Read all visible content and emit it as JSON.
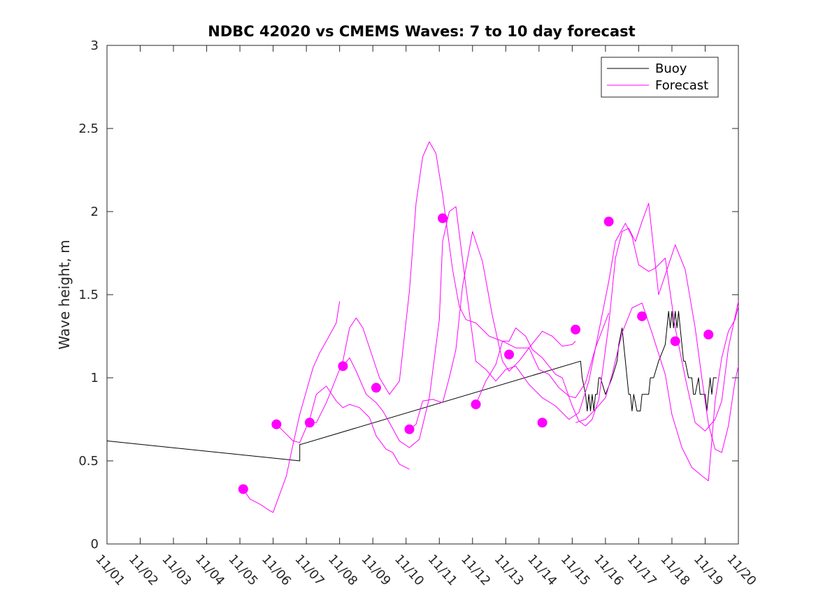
{
  "chart_data": {
    "type": "line",
    "title": "NDBC 42020 vs CMEMS Waves: 7 to 10 day forecast",
    "xlabel": "",
    "ylabel": "Wave height, m",
    "xlim": [
      0,
      19
    ],
    "ylim": [
      0,
      3
    ],
    "yticks": [
      0,
      0.5,
      1,
      1.5,
      2,
      2.5,
      3
    ],
    "ytick_labels": [
      "0",
      "0.5",
      "1",
      "1.5",
      "2",
      "2.5",
      "3"
    ],
    "xtick_labels": [
      "11/01",
      "11/02",
      "11/03",
      "11/04",
      "11/05",
      "11/06",
      "11/07",
      "11/08",
      "11/09",
      "11/10",
      "11/11",
      "11/12",
      "11/13",
      "11/14",
      "11/15",
      "11/16",
      "11/17",
      "11/18",
      "11/19",
      "11/20"
    ],
    "legend": {
      "position": "top-right",
      "entries": [
        {
          "label": "Buoy",
          "color": "#000000"
        },
        {
          "label": "Forecast",
          "color": "#ff00ff"
        }
      ]
    },
    "colors": {
      "buoy": "#000000",
      "forecast": "#ff00ff",
      "axis": "#262626"
    },
    "series": [
      {
        "name": "Buoy",
        "x": [
          0,
          5.8,
          5.8,
          5.85,
          14.25,
          14.3,
          14.4,
          14.45,
          14.5,
          14.55,
          14.6,
          14.65,
          14.7,
          14.75,
          14.8,
          14.85,
          15.0,
          15.2,
          15.35,
          15.4,
          15.5,
          15.55,
          15.6,
          15.65,
          15.7,
          15.75,
          15.8,
          15.85,
          15.95,
          16.05,
          16.1,
          16.2,
          16.3,
          16.35,
          16.45,
          16.6,
          16.8,
          16.85,
          16.9,
          16.95,
          17.0,
          17.05,
          17.1,
          17.15,
          17.2,
          17.25,
          17.3,
          17.35,
          17.4,
          17.5,
          17.55,
          17.6,
          17.65,
          17.7,
          17.8,
          17.85,
          17.9,
          18.0,
          18.05,
          18.1,
          18.15,
          18.2,
          18.25,
          18.3,
          18.35
        ],
        "y": [
          0.62,
          0.5,
          0.6,
          0.6,
          1.1,
          1.0,
          0.9,
          0.8,
          0.9,
          0.8,
          0.9,
          0.8,
          0.9,
          0.9,
          1.0,
          1.0,
          0.9,
          1.0,
          1.1,
          1.2,
          1.3,
          1.2,
          1.1,
          1.0,
          0.9,
          0.9,
          0.8,
          0.9,
          0.8,
          0.8,
          0.9,
          0.9,
          0.9,
          1.0,
          1.0,
          1.1,
          1.2,
          1.3,
          1.4,
          1.3,
          1.4,
          1.3,
          1.4,
          1.3,
          1.4,
          1.3,
          1.2,
          1.1,
          1.1,
          1.0,
          1.0,
          1.0,
          0.9,
          0.9,
          1.0,
          0.9,
          0.9,
          0.9,
          0.8,
          0.9,
          1.0,
          0.9,
          1.0,
          1.0,
          1.0
        ]
      },
      {
        "name": "Forecast",
        "x": [
          4.1,
          4.3,
          4.6,
          4.9,
          5.0,
          5.2,
          5.4,
          5.6,
          5.8,
          6.1,
          6.2,
          6.4,
          6.6,
          6.9,
          7.0
        ],
        "y": [
          0.33,
          0.27,
          0.24,
          0.2,
          0.19,
          0.3,
          0.41,
          0.6,
          0.78,
          0.99,
          1.06,
          1.15,
          1.22,
          1.33,
          1.46
        ]
      },
      {
        "name": "Forecast",
        "x": [
          5.1,
          5.3,
          5.6,
          5.8,
          6.1,
          6.3,
          6.6,
          6.9,
          7.1,
          7.3,
          7.6,
          7.9,
          8.1,
          8.4,
          8.6,
          8.8,
          9.1
        ],
        "y": [
          0.72,
          0.68,
          0.62,
          0.61,
          0.75,
          0.9,
          0.95,
          0.86,
          0.82,
          0.84,
          0.82,
          0.76,
          0.65,
          0.57,
          0.55,
          0.48,
          0.45
        ]
      },
      {
        "name": "Forecast",
        "x": [
          6.1,
          6.3,
          6.6,
          6.9,
          7.1,
          7.3,
          7.5,
          7.7,
          8.0,
          8.2,
          8.5,
          8.8,
          9.1,
          9.3,
          9.5,
          9.7,
          9.9,
          10.1,
          10.4,
          10.6,
          10.8,
          11.1,
          11.5,
          11.9,
          12.3,
          12.7,
          13.1,
          13.4,
          13.7,
          14.0,
          14.1
        ],
        "y": [
          0.73,
          0.73,
          0.85,
          1.0,
          1.1,
          1.3,
          1.36,
          1.3,
          1.12,
          1.0,
          0.9,
          0.98,
          1.52,
          2.05,
          2.33,
          2.42,
          2.35,
          2.1,
          1.65,
          1.43,
          1.35,
          1.33,
          1.25,
          1.22,
          1.18,
          1.18,
          1.28,
          1.25,
          1.19,
          1.2,
          1.22
        ]
      },
      {
        "name": "Forecast",
        "x": [
          7.1,
          7.3,
          7.5,
          7.8,
          8.1,
          8.3,
          8.5,
          8.8,
          9.1,
          9.4,
          9.7,
          10.0,
          10.1,
          10.3,
          10.5,
          10.8,
          11.1,
          11.4,
          11.7,
          12.0,
          12.3,
          12.7,
          13.1,
          13.5,
          13.9,
          14.2,
          14.5,
          14.8,
          15.1,
          15.3,
          15.6,
          15.8,
          16.0,
          16.3,
          16.5,
          16.8,
          17.1,
          17.4,
          17.7,
          18.0,
          18.3,
          18.5,
          18.7,
          19.0
        ],
        "y": [
          1.07,
          1.12,
          1.04,
          0.9,
          0.85,
          0.8,
          0.73,
          0.62,
          0.58,
          0.63,
          0.88,
          1.35,
          1.82,
          2.0,
          2.03,
          1.55,
          1.1,
          1.05,
          0.98,
          1.05,
          1.07,
          0.96,
          0.88,
          0.83,
          0.75,
          0.79,
          0.98,
          1.28,
          1.58,
          1.82,
          1.93,
          1.85,
          1.68,
          1.64,
          1.66,
          1.72,
          1.3,
          1.0,
          0.73,
          0.68,
          0.75,
          0.86,
          1.18,
          1.46
        ]
      },
      {
        "name": "Forecast",
        "x": [
          9.1,
          9.3,
          9.5,
          9.8,
          10.1,
          10.3,
          10.5,
          10.7,
          11.0,
          11.3,
          11.6,
          11.9,
          12.1,
          12.4,
          12.7,
          13.0,
          13.3,
          13.6,
          13.9,
          14.1,
          14.4,
          14.7,
          15.1
        ],
        "y": [
          0.69,
          0.72,
          0.86,
          0.87,
          0.85,
          1.0,
          1.17,
          1.55,
          1.88,
          1.7,
          1.37,
          1.1,
          1.04,
          1.1,
          1.18,
          1.05,
          1.02,
          0.94,
          0.89,
          0.88,
          0.97,
          1.18,
          1.39
        ]
      },
      {
        "name": "Forecast",
        "x": [
          11.1,
          11.4,
          11.7,
          11.9,
          12.1,
          12.3,
          12.6,
          12.8,
          13.1,
          13.3,
          13.5,
          13.7,
          14.0,
          14.2,
          14.4,
          14.6,
          14.8,
          15.1,
          15.3,
          15.5,
          15.7,
          15.9,
          16.1,
          16.3,
          16.6,
          16.9,
          17.1,
          17.4,
          17.7,
          17.9,
          18.1,
          18.3,
          18.5,
          18.7,
          18.9,
          19.0
        ],
        "y": [
          0.84,
          0.98,
          1.08,
          1.22,
          1.22,
          1.3,
          1.25,
          1.17,
          1.12,
          1.07,
          1.02,
          1.0,
          0.83,
          0.74,
          0.71,
          0.75,
          0.87,
          1.32,
          1.72,
          1.88,
          1.9,
          1.82,
          1.94,
          2.05,
          1.5,
          1.68,
          1.8,
          1.65,
          1.3,
          1.0,
          0.72,
          0.57,
          0.55,
          0.71,
          0.98,
          1.07
        ]
      },
      {
        "name": "Forecast",
        "x": [
          14.1,
          14.4,
          14.7,
          15.0,
          15.2,
          15.5,
          15.8,
          16.1,
          16.4,
          16.8,
          17.0,
          17.3,
          17.6,
          17.9,
          18.1,
          18.3,
          18.5,
          18.7,
          18.9,
          19.0
        ],
        "y": [
          0.73,
          0.75,
          0.81,
          0.88,
          1.02,
          1.27,
          1.42,
          1.45,
          1.27,
          1.02,
          0.78,
          0.58,
          0.46,
          0.41,
          0.38,
          0.86,
          1.12,
          1.28,
          1.35,
          1.43
        ]
      }
    ],
    "markers": {
      "x": [
        4.1,
        5.1,
        6.1,
        7.1,
        8.1,
        9.1,
        10.1,
        11.1,
        12.1,
        13.1,
        14.1,
        15.1,
        16.1,
        17.1,
        18.1
      ],
      "y": [
        0.33,
        0.72,
        0.73,
        1.07,
        0.94,
        0.69,
        1.96,
        0.84,
        1.14,
        0.73,
        1.29,
        1.94,
        1.37,
        1.22,
        1.26
      ]
    }
  }
}
